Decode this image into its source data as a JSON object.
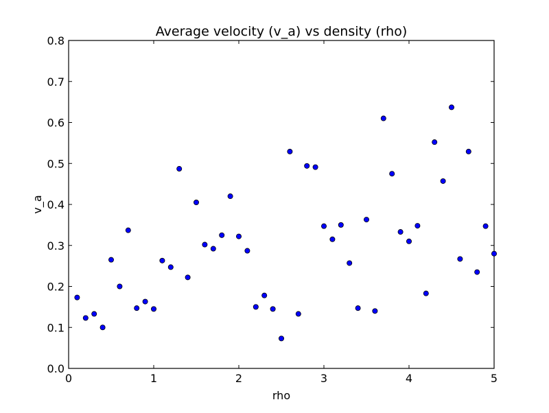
{
  "chart_data": {
    "type": "scatter",
    "title": "Average velocity (v_a) vs density (rho)",
    "xlabel": "rho",
    "ylabel": "v_a",
    "xlim": [
      0,
      5
    ],
    "ylim": [
      0,
      0.8
    ],
    "xticks": [
      0,
      1,
      2,
      3,
      4,
      5
    ],
    "xtick_labels": [
      "0",
      "1",
      "2",
      "3",
      "4",
      "5"
    ],
    "yticks": [
      0.0,
      0.1,
      0.2,
      0.3,
      0.4,
      0.5,
      0.6,
      0.7,
      0.8
    ],
    "ytick_labels": [
      "0.0",
      "0.1",
      "0.2",
      "0.3",
      "0.4",
      "0.5",
      "0.6",
      "0.7",
      "0.8"
    ],
    "grid": false,
    "marker_color": "#0000ff",
    "x": [
      0.1,
      0.2,
      0.3,
      0.4,
      0.5,
      0.6,
      0.7,
      0.8,
      0.9,
      1.0,
      1.1,
      1.2,
      1.3,
      1.4,
      1.5,
      1.6,
      1.7,
      1.8,
      1.9,
      2.0,
      2.1,
      2.2,
      2.3,
      2.4,
      2.5,
      2.6,
      2.7,
      2.8,
      2.9,
      3.0,
      3.1,
      3.2,
      3.3,
      3.4,
      3.5,
      3.6,
      3.7,
      3.8,
      3.9,
      4.0,
      4.1,
      4.2,
      4.3,
      4.4,
      4.5,
      4.6,
      4.7,
      4.8,
      4.9,
      5.0
    ],
    "y": [
      0.173,
      0.123,
      0.133,
      0.1,
      0.265,
      0.2,
      0.337,
      0.147,
      0.163,
      0.145,
      0.263,
      0.247,
      0.487,
      0.222,
      0.405,
      0.302,
      0.292,
      0.325,
      0.42,
      0.322,
      0.287,
      0.15,
      0.178,
      0.145,
      0.073,
      0.529,
      0.133,
      0.494,
      0.491,
      0.347,
      0.315,
      0.35,
      0.257,
      0.147,
      0.363,
      0.14,
      0.61,
      0.475,
      0.333,
      0.31,
      0.348,
      0.183,
      0.552,
      0.457,
      0.637,
      0.267,
      0.529,
      0.235,
      0.347,
      0.28
    ]
  }
}
